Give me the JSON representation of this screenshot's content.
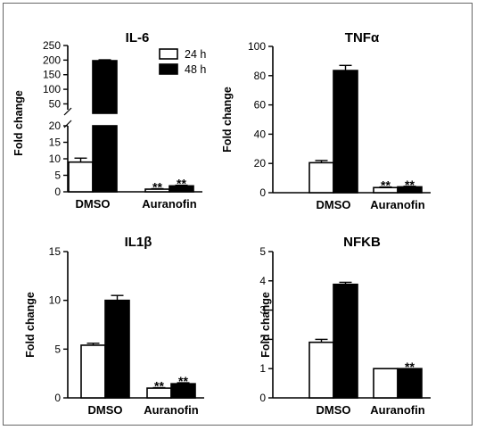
{
  "chart_data": [
    {
      "type": "bar",
      "title": "IL-6",
      "ylabel": "Fold change",
      "categories": [
        "DMSO",
        "Auranofin"
      ],
      "series": [
        {
          "name": "24 h",
          "values": [
            9,
            0.8
          ],
          "errors": [
            1.2,
            0.15
          ],
          "color": "#ffffff"
        },
        {
          "name": "48 h",
          "values": [
            198,
            1.8
          ],
          "errors": [
            3,
            0.2
          ],
          "color": "#000000"
        }
      ],
      "significance": [
        [
          "",
          ""
        ],
        [
          "**",
          "**"
        ]
      ],
      "axis_break": true,
      "y_segments": [
        {
          "range": [
            0,
            20
          ],
          "ticks": [
            0,
            5,
            10,
            15,
            20
          ]
        },
        {
          "range": [
            30,
            250
          ],
          "ticks": [
            50,
            100,
            150,
            200,
            250
          ]
        }
      ],
      "legend": "top-right"
    },
    {
      "type": "bar",
      "title": "TNFα",
      "ylabel": "Fold change",
      "categories": [
        "DMSO",
        "Auranofin"
      ],
      "series": [
        {
          "name": "24 h",
          "values": [
            20.5,
            3.5
          ],
          "errors": [
            1.5,
            0.4
          ],
          "color": "#ffffff"
        },
        {
          "name": "48 h",
          "values": [
            83.5,
            4
          ],
          "errors": [
            3.5,
            0.4
          ],
          "color": "#000000"
        }
      ],
      "significance": [
        [
          "",
          ""
        ],
        [
          "**",
          "**"
        ]
      ],
      "ylim": [
        0,
        100
      ],
      "yticks": [
        0,
        20,
        40,
        60,
        80,
        100
      ]
    },
    {
      "type": "bar",
      "title": "IL1β",
      "ylabel": "Fold change",
      "categories": [
        "DMSO",
        "Auranofin"
      ],
      "series": [
        {
          "name": "24 h",
          "values": [
            5.4,
            1
          ],
          "errors": [
            0.2,
            0.05
          ],
          "color": "#ffffff"
        },
        {
          "name": "48 h",
          "values": [
            10,
            1.45
          ],
          "errors": [
            0.5,
            0.1
          ],
          "color": "#000000"
        }
      ],
      "significance": [
        [
          "",
          ""
        ],
        [
          "**",
          "**"
        ]
      ],
      "ylim": [
        0,
        15
      ],
      "yticks": [
        0,
        5,
        10,
        15
      ]
    },
    {
      "type": "bar",
      "title": "NFKB",
      "ylabel": "Fold change",
      "categories": [
        "DMSO",
        "Auranofin"
      ],
      "series": [
        {
          "name": "24 h",
          "values": [
            1.9,
            1
          ],
          "errors": [
            0.1,
            0
          ],
          "color": "#ffffff"
        },
        {
          "name": "48 h",
          "values": [
            3.88,
            1
          ],
          "errors": [
            0.07,
            0
          ],
          "color": "#000000"
        }
      ],
      "significance": [
        [
          "",
          ""
        ],
        [
          "",
          "**"
        ]
      ],
      "ylim": [
        0,
        5
      ],
      "yticks": [
        0,
        1,
        2,
        3,
        4,
        5
      ]
    }
  ]
}
